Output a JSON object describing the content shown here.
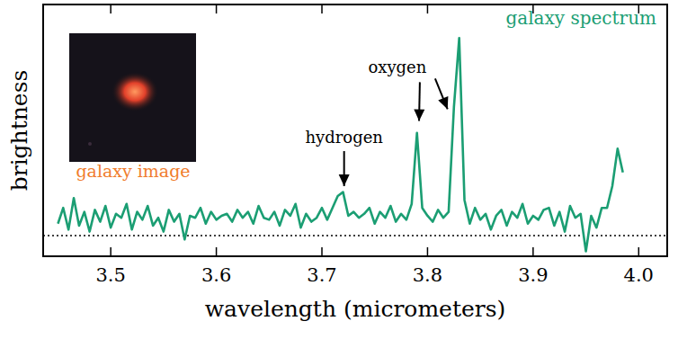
{
  "chart_data": {
    "type": "line",
    "x_label": "wavelength (micrometers)",
    "y_label": "brightness",
    "xlim": [
      3.436,
      4.027
    ],
    "ylim": [
      -1.05,
      11.7
    ],
    "xticks": [
      3.5,
      3.6,
      3.7,
      3.8,
      3.9,
      {
        "value": 4,
        "label": "4.0"
      }
    ],
    "tick_labels": "x",
    "legend": "upper right",
    "reference_line": 0,
    "x": [
      3.45,
      3.455,
      3.46,
      3.465,
      3.47,
      3.475,
      3.48,
      3.485,
      3.49,
      3.495,
      3.5,
      3.505,
      3.51,
      3.515,
      3.52,
      3.525,
      3.53,
      3.535,
      3.54,
      3.545,
      3.55,
      3.555,
      3.56,
      3.565,
      3.57,
      3.575,
      3.58,
      3.585,
      3.59,
      3.595,
      3.6,
      3.605,
      3.61,
      3.615,
      3.62,
      3.625,
      3.63,
      3.635,
      3.64,
      3.645,
      3.65,
      3.655,
      3.66,
      3.665,
      3.67,
      3.675,
      3.68,
      3.685,
      3.69,
      3.695,
      3.7,
      3.705,
      3.71,
      3.715,
      3.72,
      3.725,
      3.73,
      3.735,
      3.74,
      3.745,
      3.75,
      3.755,
      3.76,
      3.765,
      3.77,
      3.775,
      3.78,
      3.785,
      3.79,
      3.795,
      3.8,
      3.805,
      3.81,
      3.815,
      3.82,
      3.825,
      3.83,
      3.835,
      3.84,
      3.845,
      3.85,
      3.855,
      3.86,
      3.865,
      3.87,
      3.875,
      3.88,
      3.885,
      3.89,
      3.895,
      3.9,
      3.905,
      3.91,
      3.915,
      3.92,
      3.925,
      3.93,
      3.935,
      3.94,
      3.945,
      3.95,
      3.955,
      3.96,
      3.965,
      3.97,
      3.975,
      3.98,
      3.985
    ],
    "series": [
      {
        "name": "galaxy spectrum",
        "color": "#1b9e73",
        "values": [
          0.6,
          1.4,
          0.3,
          1.9,
          0.5,
          1.2,
          0.2,
          1.3,
          0.7,
          1.5,
          0.4,
          1.1,
          0.9,
          1.6,
          0.3,
          1.2,
          0.8,
          1.5,
          0.5,
          0.9,
          0.2,
          1.3,
          0.7,
          1.1,
          -0.2,
          1.0,
          0.9,
          1.4,
          0.6,
          1.2,
          0.8,
          1.0,
          1.1,
          0.7,
          1.3,
          0.9,
          1.2,
          0.6,
          1.5,
          0.9,
          0.8,
          1.2,
          0.5,
          1.3,
          1.0,
          1.6,
          0.4,
          1.1,
          0.7,
          0.9,
          1.4,
          0.8,
          1.4,
          2.0,
          2.2,
          1.0,
          1.2,
          0.9,
          1.1,
          1.4,
          0.6,
          1.2,
          0.9,
          1.5,
          0.7,
          1.1,
          0.8,
          1.6,
          5.2,
          1.4,
          1.0,
          0.7,
          1.3,
          0.9,
          1.2,
          6.5,
          10.0,
          1.8,
          0.6,
          1.4,
          0.8,
          1.1,
          0.3,
          1.0,
          1.3,
          0.5,
          1.2,
          0.9,
          1.6,
          0.6,
          1.0,
          0.8,
          1.3,
          1.4,
          0.5,
          1.2,
          0.2,
          1.5,
          0.9,
          1.1,
          -0.8,
          1.0,
          0.4,
          1.4,
          1.4,
          2.5,
          4.4,
          3.2
        ]
      }
    ],
    "annotations": [
      {
        "text": "hydrogen",
        "points": [
          [
            3.721,
            2.5
          ]
        ]
      },
      {
        "text": "oxygen",
        "points": [
          [
            3.792,
            5.8
          ],
          [
            3.819,
            6.4
          ]
        ]
      }
    ],
    "inset_image": {
      "label": "galaxy image",
      "color": "#f07c2c"
    }
  }
}
